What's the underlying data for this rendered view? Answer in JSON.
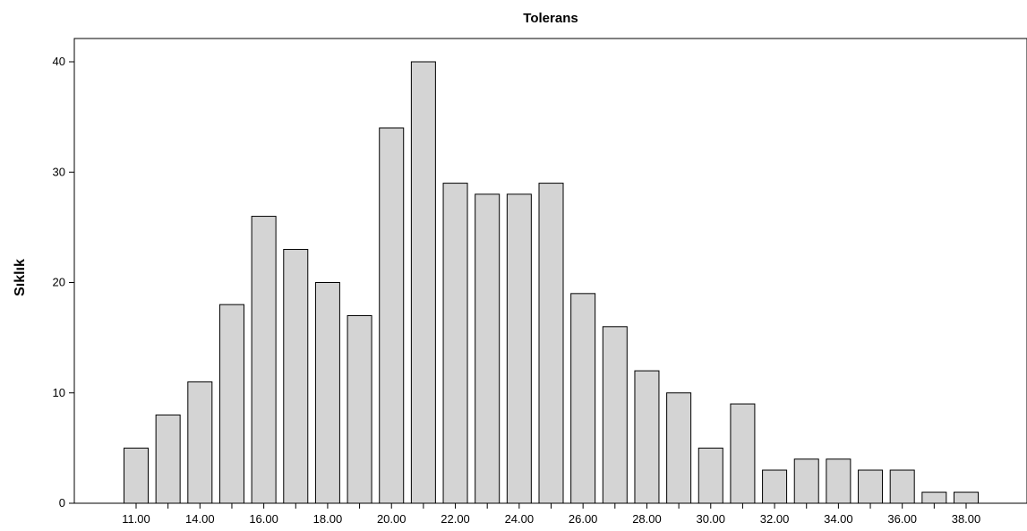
{
  "chart_data": {
    "type": "bar",
    "title": "Tolerans",
    "xlabel": "",
    "ylabel": "Sıklık",
    "categories": [
      "11.00",
      "13.00",
      "14.00",
      "15.00",
      "16.00",
      "17.00",
      "18.00",
      "19.00",
      "20.00",
      "21.00",
      "22.00",
      "23.00",
      "24.00",
      "25.00",
      "26.00",
      "27.00",
      "28.00",
      "29.00",
      "30.00",
      "31.00",
      "32.00",
      "33.00",
      "34.00",
      "35.00",
      "36.00",
      "37.00",
      "38.00"
    ],
    "values": [
      5,
      8,
      11,
      18,
      26,
      23,
      20,
      17,
      34,
      40,
      29,
      28,
      28,
      29,
      19,
      16,
      12,
      10,
      5,
      9,
      3,
      4,
      4,
      3,
      3,
      1,
      1
    ],
    "x_tick_labels": [
      "11.00",
      "14.00",
      "16.00",
      "18.00",
      "20.00",
      "22.00",
      "24.00",
      "26.00",
      "28.00",
      "30.00",
      "32.00",
      "34.00",
      "36.00",
      "38.00"
    ],
    "y_ticks": [
      0,
      10,
      20,
      30,
      40
    ],
    "ylim": [
      0,
      42
    ],
    "grid": false,
    "colors": {
      "bar_fill": "#d4d4d4",
      "bar_stroke": "#000000"
    }
  }
}
